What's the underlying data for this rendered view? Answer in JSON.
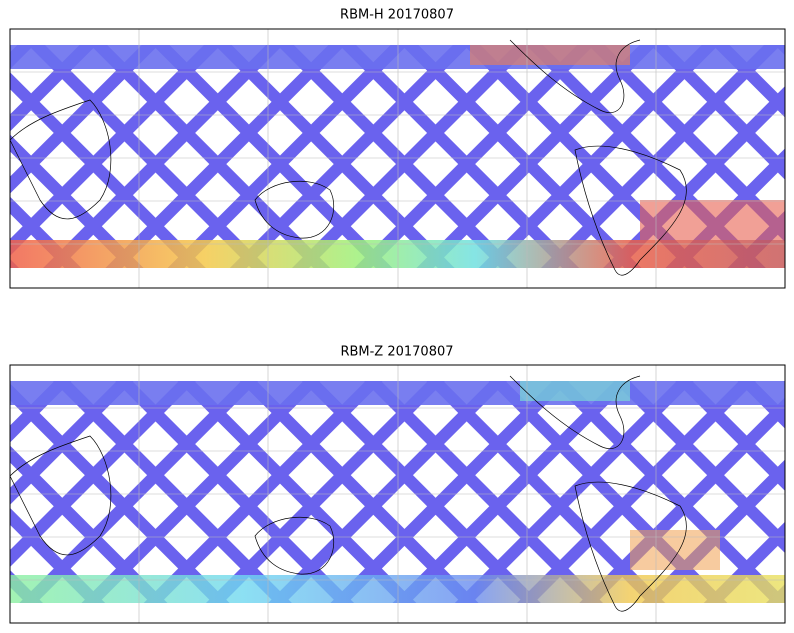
{
  "panels": [
    {
      "title": "RBM-H 20170807"
    },
    {
      "title": "RBM-Z 20170807"
    }
  ]
}
